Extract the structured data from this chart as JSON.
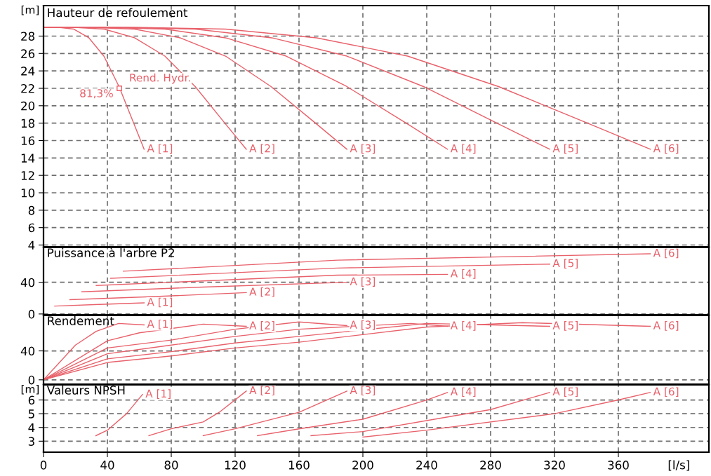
{
  "chart_data": [
    {
      "type": "line",
      "title": "Hauteur de refoulement",
      "ylabel": "[m]",
      "xlim": [
        0,
        416.7
      ],
      "xticks": [
        0,
        40,
        80,
        120,
        160,
        200,
        240,
        280,
        320,
        360
      ],
      "ylim": [
        3.8,
        31.5
      ],
      "yticks": [
        4,
        6,
        8,
        10,
        12,
        14,
        16,
        18,
        20,
        22,
        24,
        26,
        28
      ],
      "grid": true,
      "legend": false,
      "tick_labels": "y",
      "annotations": [
        "Rend. Hydr.",
        "81,3%"
      ],
      "series": [
        {
          "name": "A [1]",
          "color": "#e8616b",
          "x": [
            0,
            9.5,
            19,
            28.4,
            37.8,
            47.3,
            56.7,
            63
          ],
          "values": [
            29,
            29,
            28.8,
            27.8,
            25.7,
            22.2,
            17.9,
            15
          ]
        },
        {
          "name": "A [2]",
          "color": "#e8616b",
          "x": [
            0,
            19,
            38,
            57,
            76,
            95,
            114,
            127
          ],
          "values": [
            29,
            29,
            28.8,
            27.8,
            25.7,
            22.2,
            17.9,
            15
          ]
        },
        {
          "name": "A [3]",
          "color": "#e8616b",
          "x": [
            0,
            28.5,
            57,
            85.5,
            114,
            142.5,
            171,
            190
          ],
          "values": [
            29,
            29,
            28.8,
            27.8,
            25.7,
            22.2,
            17.9,
            15
          ]
        },
        {
          "name": "A [4]",
          "color": "#e8616b",
          "x": [
            0,
            38,
            76,
            114,
            152,
            190,
            228,
            253
          ],
          "values": [
            29,
            29,
            28.8,
            27.8,
            25.7,
            22.2,
            17.9,
            15
          ]
        },
        {
          "name": "A [5]",
          "color": "#e8616b",
          "x": [
            0,
            47.5,
            95,
            143,
            190,
            238,
            285,
            317
          ],
          "values": [
            29,
            29,
            28.8,
            27.8,
            25.7,
            22.2,
            17.9,
            15
          ]
        },
        {
          "name": "A [6]",
          "color": "#e8616b",
          "x": [
            0,
            57,
            114,
            171,
            228,
            285,
            342,
            380
          ],
          "values": [
            29,
            29,
            28.8,
            27.8,
            25.7,
            22.2,
            17.9,
            15
          ]
        },
        {
          "type": "scatter",
          "marker": "square",
          "color": "#e8616b",
          "x": [
            47.5
          ],
          "values": [
            22
          ]
        }
      ]
    },
    {
      "type": "line",
      "title": "Puissance à l'arbre P2",
      "xlim": [
        0,
        416.7
      ],
      "xticks": [
        0,
        40,
        80,
        120,
        160,
        200,
        240,
        280,
        320,
        360
      ],
      "ylim": [
        -1,
        84
      ],
      "yticks": [
        0,
        40
      ],
      "grid": true,
      "legend": false,
      "tick_labels": "y",
      "series": [
        {
          "name": "A [1]",
          "color": "#e8616b",
          "x": [
            7,
            35,
            63
          ],
          "values": [
            10,
            12,
            14
          ]
        },
        {
          "name": "A [2]",
          "color": "#e8616b",
          "x": [
            16.5,
            70,
            127
          ],
          "values": [
            18,
            22,
            27
          ]
        },
        {
          "name": "A [3]",
          "color": "#e8616b",
          "x": [
            24,
            100,
            190
          ],
          "values": [
            28,
            34,
            40
          ]
        },
        {
          "name": "A [4]",
          "color": "#e8616b",
          "x": [
            33,
            184,
            253
          ],
          "values": [
            36,
            49,
            50
          ]
        },
        {
          "name": "A [5]",
          "color": "#e8616b",
          "x": [
            42,
            184,
            317
          ],
          "values": [
            45,
            58,
            63
          ]
        },
        {
          "name": "A [6]",
          "color": "#e8616b",
          "x": [
            50,
            184,
            380
          ],
          "values": [
            54,
            68,
            76
          ]
        }
      ]
    },
    {
      "type": "line",
      "title": "Rendement",
      "xlim": [
        0,
        416.7
      ],
      "xticks": [
        0,
        40,
        80,
        120,
        160,
        200,
        240,
        280,
        320,
        360
      ],
      "ylim": [
        -6,
        89
      ],
      "yticks": [
        0,
        40
      ],
      "grid": true,
      "legend": false,
      "tick_labels": "y",
      "series": [
        {
          "name": "A [1]",
          "color": "#e8616b",
          "x": [
            0,
            20,
            33,
            47,
            63
          ],
          "values": [
            0,
            48,
            67,
            78,
            76
          ]
        },
        {
          "name": "A [2]",
          "color": "#e8616b",
          "x": [
            0,
            40,
            60,
            100,
            127
          ],
          "values": [
            0,
            54,
            65,
            77,
            74
          ]
        },
        {
          "name": "A [3]",
          "color": "#e8616b",
          "x": [
            0,
            40,
            80,
            120,
            160,
            190
          ],
          "values": [
            0,
            44,
            55,
            70,
            80,
            75
          ]
        },
        {
          "name": "A [4]",
          "color": "#e8616b",
          "x": [
            0,
            40,
            80,
            120,
            160,
            230,
            253
          ],
          "values": [
            0,
            36,
            48,
            60,
            70,
            78,
            74
          ]
        },
        {
          "name": "A [5]",
          "color": "#e8616b",
          "x": [
            0,
            40,
            80,
            120,
            160,
            240,
            317
          ],
          "values": [
            0,
            29,
            39,
            51,
            60,
            78,
            74
          ]
        },
        {
          "name": "A [6]",
          "color": "#e8616b",
          "x": [
            0,
            40,
            80,
            120,
            160,
            240,
            300,
            380
          ],
          "values": [
            0,
            24,
            33,
            44,
            52,
            73,
            79,
            74
          ]
        }
      ]
    },
    {
      "type": "line",
      "title": "Valeurs NPSH",
      "ylabel": "[m]",
      "xlabel": "[l/s]",
      "xlim": [
        0,
        416.7
      ],
      "xticks": [
        0,
        40,
        80,
        120,
        160,
        200,
        240,
        280,
        320,
        360
      ],
      "ylim": [
        2.2,
        7.1
      ],
      "yticks": [
        3,
        4,
        5,
        6
      ],
      "grid": true,
      "legend": false,
      "series": [
        {
          "name": "A [1]",
          "color": "#e8616b",
          "x": [
            32.8,
            40,
            52,
            62
          ],
          "values": [
            3.4,
            3.8,
            5.0,
            6.4
          ]
        },
        {
          "name": "A [2]",
          "color": "#e8616b",
          "x": [
            66,
            80,
            100,
            110,
            127
          ],
          "values": [
            3.4,
            3.9,
            4.4,
            5.1,
            6.65
          ]
        },
        {
          "name": "A [3]",
          "color": "#e8616b",
          "x": [
            100,
            120,
            160,
            190
          ],
          "values": [
            3.4,
            3.9,
            5.1,
            6.65
          ]
        },
        {
          "name": "A [4]",
          "color": "#e8616b",
          "x": [
            134,
            160,
            200,
            240,
            253
          ],
          "values": [
            3.4,
            3.9,
            4.6,
            6.0,
            6.55
          ]
        },
        {
          "name": "A [5]",
          "color": "#e8616b",
          "x": [
            167.5,
            200,
            250,
            280,
            317
          ],
          "values": [
            3.4,
            3.7,
            4.7,
            5.3,
            6.55
          ]
        },
        {
          "name": "A [6]",
          "color": "#e8616b",
          "x": [
            200,
            240,
            320,
            360,
            380
          ],
          "values": [
            3.3,
            3.8,
            5.0,
            6.0,
            6.55
          ]
        }
      ]
    }
  ]
}
